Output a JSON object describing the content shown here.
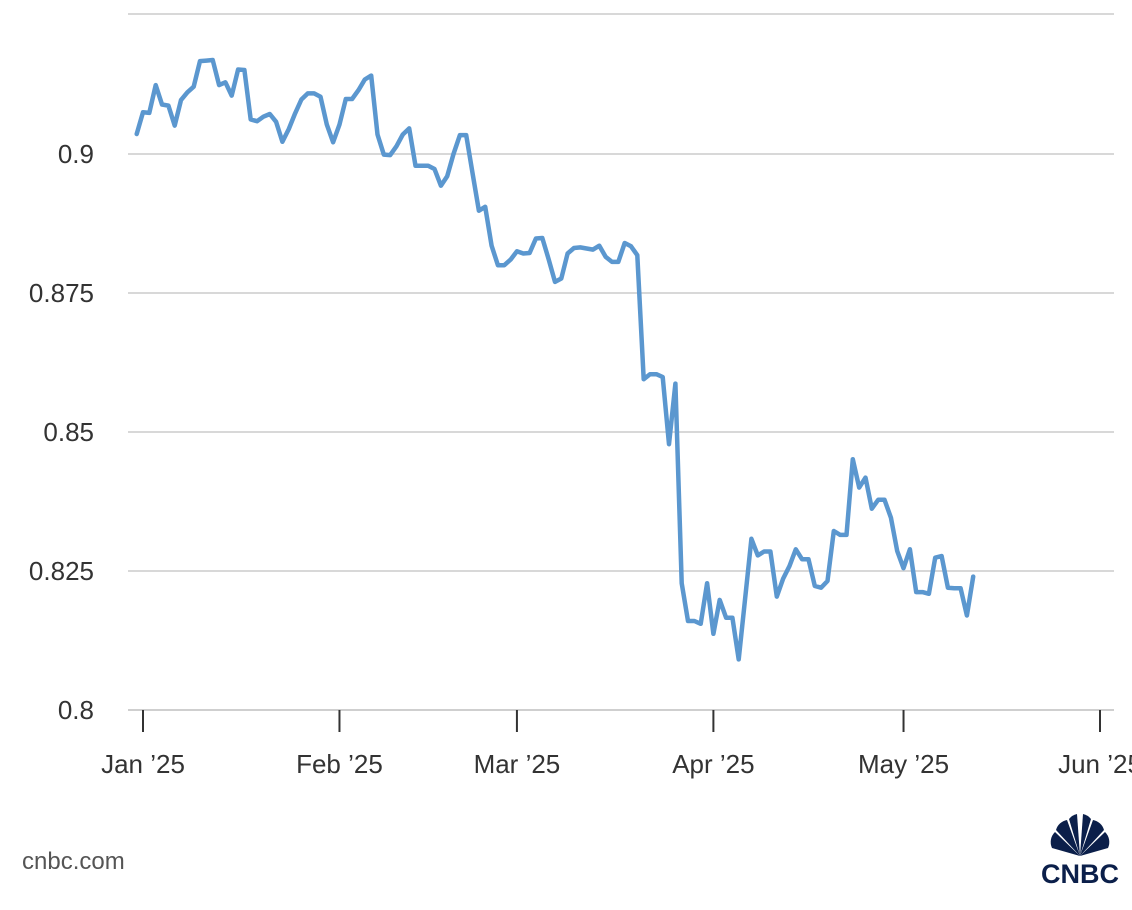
{
  "chart_data": {
    "type": "line",
    "title": "",
    "xlabel": "",
    "ylabel": "",
    "ylim": [
      0.8,
      0.925
    ],
    "y_ticks": [
      "0.8",
      "0.825",
      "0.85",
      "0.875",
      "0.9"
    ],
    "y_tick_values": [
      0.8,
      0.825,
      0.85,
      0.875,
      0.9
    ],
    "x_ticks": [
      "Jan ’25",
      "Feb ’25",
      "Mar ’25",
      "Apr ’25",
      "May ’25",
      "Jun ’25"
    ],
    "x_tick_dates": [
      "2025-01-01",
      "2025-02-01",
      "2025-03-01",
      "2025-04-01",
      "2025-05-01",
      "2025-06-01"
    ],
    "grid": true,
    "legend": "none",
    "color": "#5b97cf",
    "series": [
      {
        "points": [
          [
            "2024-12-31",
            0.9036
          ],
          [
            "2025-01-01",
            0.9075
          ],
          [
            "2025-01-02",
            0.9074
          ],
          [
            "2025-01-03",
            0.9124
          ],
          [
            "2025-01-04",
            0.9089
          ],
          [
            "2025-01-05",
            0.9087
          ],
          [
            "2025-01-06",
            0.9051
          ],
          [
            "2025-01-07",
            0.9097
          ],
          [
            "2025-01-08",
            0.9111
          ],
          [
            "2025-01-09",
            0.9121
          ],
          [
            "2025-01-10",
            0.9167
          ],
          [
            "2025-01-11",
            0.9168
          ],
          [
            "2025-01-12",
            0.9169
          ],
          [
            "2025-01-13",
            0.9124
          ],
          [
            "2025-01-14",
            0.9129
          ],
          [
            "2025-01-15",
            0.9105
          ],
          [
            "2025-01-16",
            0.9152
          ],
          [
            "2025-01-17",
            0.9151
          ],
          [
            "2025-01-18",
            0.9062
          ],
          [
            "2025-01-19",
            0.9059
          ],
          [
            "2025-01-20",
            0.9067
          ],
          [
            "2025-01-21",
            0.9072
          ],
          [
            "2025-01-22",
            0.9058
          ],
          [
            "2025-01-23",
            0.9022
          ],
          [
            "2025-01-24",
            0.9045
          ],
          [
            "2025-01-25",
            0.9073
          ],
          [
            "2025-01-26",
            0.9098
          ],
          [
            "2025-01-27",
            0.9109
          ],
          [
            "2025-01-28",
            0.9109
          ],
          [
            "2025-01-29",
            0.9103
          ],
          [
            "2025-01-30",
            0.9053
          ],
          [
            "2025-01-31",
            0.9021
          ],
          [
            "2025-02-01",
            0.9053
          ],
          [
            "2025-02-02",
            0.9099
          ],
          [
            "2025-02-03",
            0.9099
          ],
          [
            "2025-02-04",
            0.9115
          ],
          [
            "2025-02-05",
            0.9134
          ],
          [
            "2025-02-06",
            0.9141
          ],
          [
            "2025-02-07",
            0.9035
          ],
          [
            "2025-02-08",
            0.8999
          ],
          [
            "2025-02-09",
            0.8998
          ],
          [
            "2025-02-10",
            0.9014
          ],
          [
            "2025-02-11",
            0.9035
          ],
          [
            "2025-02-12",
            0.9046
          ],
          [
            "2025-02-13",
            0.8979
          ],
          [
            "2025-02-14",
            0.8979
          ],
          [
            "2025-02-15",
            0.8979
          ],
          [
            "2025-02-16",
            0.8973
          ],
          [
            "2025-02-17",
            0.8943
          ],
          [
            "2025-02-18",
            0.896
          ],
          [
            "2025-02-19",
            0.9
          ],
          [
            "2025-02-20",
            0.9034
          ],
          [
            "2025-02-21",
            0.9034
          ],
          [
            "2025-02-22",
            0.8965
          ],
          [
            "2025-02-23",
            0.8898
          ],
          [
            "2025-02-24",
            0.8905
          ],
          [
            "2025-02-25",
            0.8835
          ],
          [
            "2025-02-26",
            0.88
          ],
          [
            "2025-02-27",
            0.88
          ],
          [
            "2025-02-28",
            0.881
          ],
          [
            "2025-03-01",
            0.8825
          ],
          [
            "2025-03-02",
            0.8821
          ],
          [
            "2025-03-03",
            0.8822
          ],
          [
            "2025-03-04",
            0.8848
          ],
          [
            "2025-03-05",
            0.8849
          ],
          [
            "2025-03-06",
            0.8811
          ],
          [
            "2025-03-07",
            0.877
          ],
          [
            "2025-03-08",
            0.8776
          ],
          [
            "2025-03-09",
            0.8821
          ],
          [
            "2025-03-10",
            0.8831
          ],
          [
            "2025-03-11",
            0.8832
          ],
          [
            "2025-03-12",
            0.883
          ],
          [
            "2025-03-13",
            0.8828
          ],
          [
            "2025-03-14",
            0.8835
          ],
          [
            "2025-03-15",
            0.8815
          ],
          [
            "2025-03-16",
            0.8806
          ],
          [
            "2025-03-17",
            0.8806
          ],
          [
            "2025-03-18",
            0.884
          ],
          [
            "2025-03-19",
            0.8834
          ],
          [
            "2025-03-20",
            0.8818
          ],
          [
            "2025-03-21",
            0.8595
          ],
          [
            "2025-03-22",
            0.8604
          ],
          [
            "2025-03-23",
            0.8604
          ],
          [
            "2025-03-24",
            0.8599
          ],
          [
            "2025-03-25",
            0.8478
          ],
          [
            "2025-03-26",
            0.8587
          ],
          [
            "2025-03-27",
            0.8228
          ],
          [
            "2025-03-28",
            0.816
          ],
          [
            "2025-03-29",
            0.816
          ],
          [
            "2025-03-30",
            0.8155
          ],
          [
            "2025-03-31",
            0.8228
          ],
          [
            "2025-04-01",
            0.8137
          ],
          [
            "2025-04-02",
            0.8198
          ],
          [
            "2025-04-03",
            0.8166
          ],
          [
            "2025-04-04",
            0.8166
          ],
          [
            "2025-04-05",
            0.8091
          ],
          [
            "2025-04-06",
            0.82
          ],
          [
            "2025-04-07",
            0.8308
          ],
          [
            "2025-04-08",
            0.8278
          ],
          [
            "2025-04-09",
            0.8285
          ],
          [
            "2025-04-10",
            0.8285
          ],
          [
            "2025-04-11",
            0.8204
          ],
          [
            "2025-04-12",
            0.8236
          ],
          [
            "2025-04-13",
            0.8259
          ],
          [
            "2025-04-14",
            0.8289
          ],
          [
            "2025-04-15",
            0.8271
          ],
          [
            "2025-04-16",
            0.8271
          ],
          [
            "2025-04-17",
            0.8223
          ],
          [
            "2025-04-18",
            0.822
          ],
          [
            "2025-04-19",
            0.8232
          ],
          [
            "2025-04-20",
            0.8322
          ],
          [
            "2025-04-21",
            0.8315
          ],
          [
            "2025-04-22",
            0.8315
          ],
          [
            "2025-04-23",
            0.8451
          ],
          [
            "2025-04-24",
            0.84
          ],
          [
            "2025-04-25",
            0.8418
          ],
          [
            "2025-04-26",
            0.8362
          ],
          [
            "2025-04-27",
            0.8378
          ],
          [
            "2025-04-28",
            0.8378
          ],
          [
            "2025-04-29",
            0.8346
          ],
          [
            "2025-04-30",
            0.8286
          ],
          [
            "2025-05-01",
            0.8255
          ],
          [
            "2025-05-02",
            0.8289
          ],
          [
            "2025-05-03",
            0.8212
          ],
          [
            "2025-05-04",
            0.8212
          ],
          [
            "2025-05-05",
            0.8209
          ],
          [
            "2025-05-06",
            0.8274
          ],
          [
            "2025-05-07",
            0.8277
          ],
          [
            "2025-05-08",
            0.822
          ],
          [
            "2025-05-09",
            0.8219
          ],
          [
            "2025-05-10",
            0.8219
          ],
          [
            "2025-05-11",
            0.817
          ],
          [
            "2025-05-12",
            0.824
          ]
        ]
      }
    ]
  },
  "source": "cnbc.com",
  "brand": {
    "logo_text": "CNBC",
    "colors": {
      "navy": "#0b1f4a"
    }
  }
}
